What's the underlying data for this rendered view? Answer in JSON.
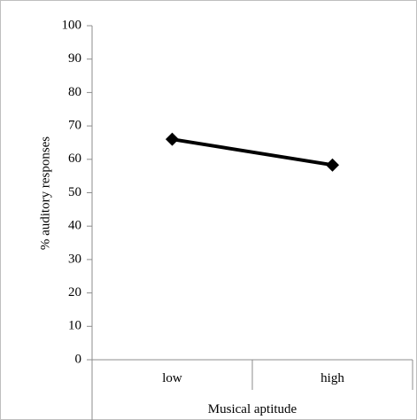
{
  "chart_data": {
    "type": "line",
    "categories": [
      "low",
      "high"
    ],
    "series": [
      {
        "values": [
          66,
          58.3
        ]
      }
    ],
    "xlabel": "Musical aptitude",
    "ylabel": "% auditory responses",
    "ylim": [
      0,
      100
    ],
    "yticks": [
      0,
      10,
      20,
      30,
      40,
      50,
      60,
      70,
      80,
      90,
      100
    ],
    "grid": false,
    "legend": "none",
    "colors": {
      "series": "#000000",
      "axis": "#8c8c8c",
      "frame": "#bfbfbf"
    }
  }
}
